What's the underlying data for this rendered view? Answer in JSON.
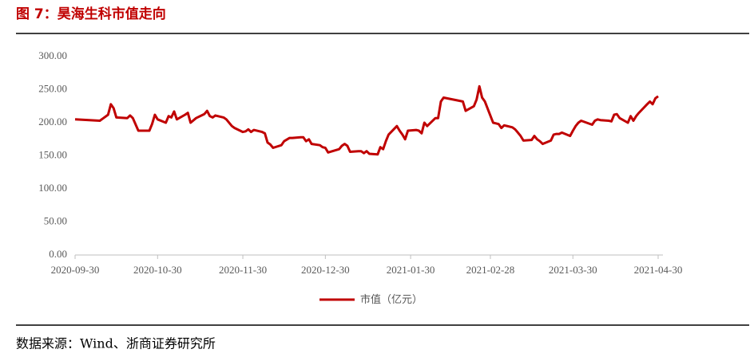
{
  "chart_data": {
    "type": "line",
    "title": "图 7：昊海生科市值走向",
    "source": "数据来源：Wind、浙商证券研究所",
    "x": [
      "2020-09-30",
      "2020-10-09",
      "2020-10-12",
      "2020-10-13",
      "2020-10-14",
      "2020-10-15",
      "2020-10-19",
      "2020-10-20",
      "2020-10-21",
      "2020-10-23",
      "2020-10-27",
      "2020-10-28",
      "2020-10-29",
      "2020-10-30",
      "2020-11-02",
      "2020-11-03",
      "2020-11-04",
      "2020-11-05",
      "2020-11-06",
      "2020-11-09",
      "2020-11-10",
      "2020-11-11",
      "2020-11-13",
      "2020-11-16",
      "2020-11-17",
      "2020-11-18",
      "2020-11-19",
      "2020-11-20",
      "2020-11-23",
      "2020-11-24",
      "2020-11-26",
      "2020-11-27",
      "2020-11-30",
      "2020-12-01",
      "2020-12-02",
      "2020-12-03",
      "2020-12-04",
      "2020-12-07",
      "2020-12-08",
      "2020-12-09",
      "2020-12-10",
      "2020-12-11",
      "2020-12-14",
      "2020-12-15",
      "2020-12-17",
      "2020-12-18",
      "2020-12-21",
      "2020-12-22",
      "2020-12-23",
      "2020-12-24",
      "2020-12-25",
      "2020-12-28",
      "2020-12-29",
      "2020-12-30",
      "2020-12-31",
      "2021-01-04",
      "2021-01-05",
      "2021-01-06",
      "2021-01-07",
      "2021-01-08",
      "2021-01-11",
      "2021-01-12",
      "2021-01-13",
      "2021-01-14",
      "2021-01-15",
      "2021-01-18",
      "2021-01-19",
      "2021-01-20",
      "2021-01-21",
      "2021-01-22",
      "2021-01-25",
      "2021-01-26",
      "2021-01-27",
      "2021-01-28",
      "2021-01-29",
      "2021-02-01",
      "2021-02-02",
      "2021-02-03",
      "2021-02-04",
      "2021-02-05",
      "2021-02-08",
      "2021-02-09",
      "2021-02-10",
      "2021-02-11",
      "2021-02-18",
      "2021-02-19",
      "2021-02-22",
      "2021-02-23",
      "2021-02-24",
      "2021-02-25",
      "2021-02-26",
      "2021-03-01",
      "2021-03-02",
      "2021-03-03",
      "2021-03-04",
      "2021-03-05",
      "2021-03-08",
      "2021-03-09",
      "2021-03-10",
      "2021-03-11",
      "2021-03-12",
      "2021-03-15",
      "2021-03-16",
      "2021-03-17",
      "2021-03-18",
      "2021-03-19",
      "2021-03-22",
      "2021-03-23",
      "2021-03-24",
      "2021-03-25",
      "2021-03-26",
      "2021-03-29",
      "2021-03-30",
      "2021-03-31",
      "2021-04-01",
      "2021-04-02",
      "2021-04-06",
      "2021-04-07",
      "2021-04-08",
      "2021-04-09",
      "2021-04-12",
      "2021-04-13",
      "2021-04-14",
      "2021-04-15",
      "2021-04-16",
      "2021-04-19",
      "2021-04-20",
      "2021-04-21",
      "2021-04-22",
      "2021-04-23",
      "2021-04-26",
      "2021-04-27",
      "2021-04-28",
      "2021-04-29",
      "2021-04-30"
    ],
    "series": [
      {
        "name": "市值（亿元）",
        "color": "#c00000",
        "values": [
          205,
          203,
          212,
          228,
          222,
          208,
          207,
          211,
          207,
          188,
          188,
          198,
          212,
          205,
          200,
          210,
          208,
          217,
          205,
          212,
          215,
          200,
          207,
          213,
          218,
          210,
          208,
          211,
          208,
          205,
          195,
          192,
          186,
          187,
          190,
          186,
          189,
          186,
          184,
          170,
          167,
          162,
          166,
          172,
          177,
          177,
          178,
          178,
          172,
          175,
          168,
          166,
          163,
          162,
          155,
          160,
          165,
          168,
          165,
          156,
          157,
          157,
          154,
          157,
          153,
          152,
          163,
          160,
          172,
          182,
          195,
          188,
          182,
          175,
          188,
          189,
          188,
          184,
          200,
          195,
          207,
          207,
          232,
          238,
          232,
          218,
          225,
          235,
          255,
          238,
          232,
          200,
          199,
          198,
          192,
          196,
          193,
          190,
          185,
          180,
          173,
          174,
          180,
          175,
          172,
          168,
          173,
          182,
          183,
          183,
          185,
          180,
          188,
          195,
          200,
          203,
          197,
          203,
          205,
          204,
          203,
          202,
          212,
          213,
          207,
          200,
          210,
          203,
          210,
          215,
          228,
          232,
          228,
          237,
          240
        ]
      }
    ],
    "ylim": [
      0,
      300
    ],
    "yticks": [
      {
        "value": 0,
        "label": "0.00"
      },
      {
        "value": 50,
        "label": "50.00"
      },
      {
        "value": 100,
        "label": "100.00"
      },
      {
        "value": 150,
        "label": "150.00"
      },
      {
        "value": 200,
        "label": "200.00"
      },
      {
        "value": 250,
        "label": "250.00"
      },
      {
        "value": 300,
        "label": "300.00"
      }
    ],
    "xlim": [
      "2020-09-30",
      "2021-04-30"
    ],
    "xticks": [
      "2020-09-30",
      "2020-10-30",
      "2020-11-30",
      "2020-12-30",
      "2021-01-30",
      "2021-02-28",
      "2021-03-30",
      "2021-04-30"
    ],
    "grid": false
  }
}
